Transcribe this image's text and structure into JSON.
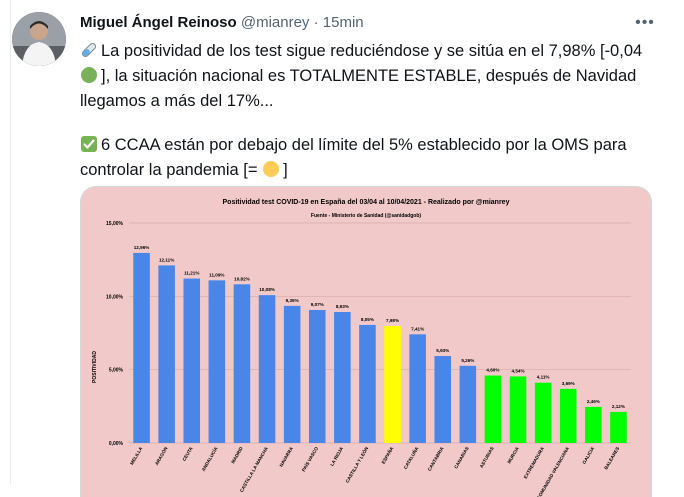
{
  "tweet": {
    "author_name": "Miguel Ángel Reinoso",
    "handle": "@mianrey",
    "separator": "·",
    "time": "15min",
    "more_icon": "more-horizontal-icon",
    "p1_text": "La positividad de los test sigue reduciéndose y se sitúa en el 7,98% [-0,04",
    "p1_text2": "], la situación nacional es TOTALMENTE ESTABLE, después de Navidad llegamos a más del 17%...",
    "p2_text": "6 CCAA están por debajo del límite del 5% establecido por la OMS para controlar la pandemia [=",
    "p2_text2": "]",
    "colors": {
      "name": "#0f1419",
      "meta": "#536471",
      "green_circle": "#78b159",
      "yellow_circle": "#fdcb58",
      "check_box": "#77b255"
    }
  },
  "chart_data": {
    "type": "bar",
    "title": "Positividad test COVID-19 en España del 03/04 al 10/04/2021 - Realizado por @mianrey",
    "subtitle": "Fuente - Ministerio de Sanidad (@sanidadgob)",
    "ylabel": "POSITIVIDAD",
    "xlabel": "",
    "ylim": [
      0,
      15
    ],
    "yticks": [
      "0,00%",
      "5,00%",
      "10,00%",
      "15,00%"
    ],
    "ytick_values": [
      0,
      5,
      10,
      15
    ],
    "grid": true,
    "background": "#f2c9c9",
    "categories": [
      "MELILLA",
      "ARAGÓN",
      "CEUTA",
      "ANDALUCÍA",
      "MADRID",
      "CASTILLA LA MANCHA",
      "NAVARRA",
      "PAÍS VASCO",
      "LA RIOJA",
      "CASTILLA Y LEÓN",
      "ESPAÑA",
      "CATALUÑA",
      "CANTABRIA",
      "CANARIAS",
      "ASTURIAS",
      "MURCIA",
      "EXTREMADURA",
      "COMUNIDAD VALENCIANA",
      "GALICIA",
      "BALEARES"
    ],
    "values": [
      12.96,
      12.11,
      11.21,
      11.09,
      10.82,
      10.08,
      9.35,
      9.07,
      8.93,
      8.05,
      7.98,
      7.41,
      5.93,
      5.26,
      4.6,
      4.54,
      4.11,
      3.69,
      2.46,
      2.12
    ],
    "labels": [
      "12,96%",
      "12,11%",
      "11,21%",
      "11,09%",
      "10,82%",
      "10,08%",
      "9,35%",
      "9,07%",
      "8,93%",
      "8,05%",
      "7,98%",
      "7,41%",
      "5,93%",
      "5,26%",
      "4,60%",
      "4,54%",
      "4,11%",
      "3,69%",
      "2,46%",
      "2,12%"
    ],
    "colors": [
      "#4a86e8",
      "#4a86e8",
      "#4a86e8",
      "#4a86e8",
      "#4a86e8",
      "#4a86e8",
      "#4a86e8",
      "#4a86e8",
      "#4a86e8",
      "#4a86e8",
      "#ffff00",
      "#4a86e8",
      "#4a86e8",
      "#4a86e8",
      "#00ff00",
      "#00ff00",
      "#00ff00",
      "#00ff00",
      "#00ff00",
      "#00ff00"
    ]
  }
}
